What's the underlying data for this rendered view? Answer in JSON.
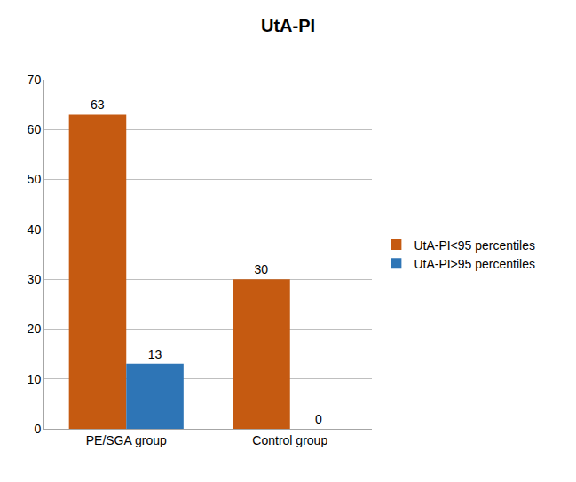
{
  "chart_data": {
    "type": "bar",
    "title": "UtA-PI",
    "categories": [
      "PE/SGA group",
      "Control group"
    ],
    "series": [
      {
        "name": "UtA-PI<95 percentiles",
        "color": "#c55a11",
        "values": [
          63,
          30
        ]
      },
      {
        "name": "UtA-PI>95 percentiles",
        "color": "#2e75b6",
        "values": [
          13,
          0
        ]
      }
    ],
    "ylim": [
      0,
      70
    ],
    "yticks": [
      0,
      10,
      20,
      30,
      40,
      50,
      60,
      70
    ],
    "grid": true,
    "legend": "right",
    "data_labels": true
  }
}
